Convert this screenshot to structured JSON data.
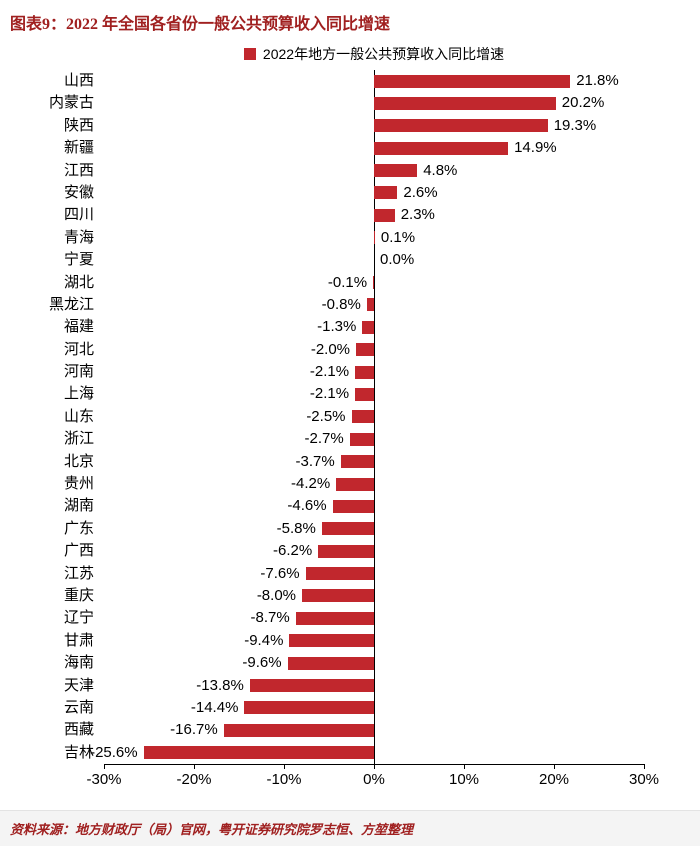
{
  "header": {
    "title": "图表9：2022 年全国各省份一般公共预算收入同比增速"
  },
  "legend": {
    "label": "2022年地方一般公共预算收入同比增速"
  },
  "footer": {
    "source": "资料来源：地方财政厅（局）官网，粤开证券研究院罗志恒、方堃整理"
  },
  "colors": {
    "bar": "#C1272D",
    "title": "#A02020",
    "axis": "#000000"
  },
  "chart_data": {
    "type": "bar",
    "orientation": "horizontal",
    "title": "2022年地方一般公共预算收入同比增速",
    "legend_position": "top",
    "grid": false,
    "xlim": [
      -30,
      30
    ],
    "x_tick_values": [
      -30,
      -20,
      -10,
      0,
      10,
      20,
      30
    ],
    "x_tick_labels": [
      "-30%",
      "-20%",
      "-10%",
      "0%",
      "10%",
      "20%",
      "30%"
    ],
    "value_suffix": "%",
    "categories": [
      "山西",
      "内蒙古",
      "陕西",
      "新疆",
      "江西",
      "安徽",
      "四川",
      "青海",
      "宁夏",
      "湖北",
      "黑龙江",
      "福建",
      "河北",
      "河南",
      "上海",
      "山东",
      "浙江",
      "北京",
      "贵州",
      "湖南",
      "广东",
      "广西",
      "江苏",
      "重庆",
      "辽宁",
      "甘肃",
      "海南",
      "天津",
      "云南",
      "西藏",
      "吉林"
    ],
    "values": [
      21.8,
      20.2,
      19.3,
      14.9,
      4.8,
      2.6,
      2.3,
      0.1,
      0.0,
      -0.1,
      -0.8,
      -1.3,
      -2.0,
      -2.1,
      -2.1,
      -2.5,
      -2.7,
      -3.7,
      -4.2,
      -4.6,
      -5.8,
      -6.2,
      -7.6,
      -8.0,
      -8.7,
      -9.4,
      -9.6,
      -13.8,
      -14.4,
      -16.7,
      -25.6
    ]
  }
}
